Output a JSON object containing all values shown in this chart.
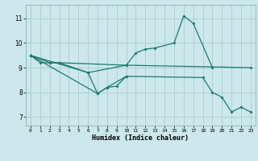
{
  "xlabel": "Humidex (Indice chaleur)",
  "background_color": "#cce8ec",
  "grid_color": "#aacccc",
  "line_color": "#1a7a6e",
  "xlim": [
    -0.5,
    23.5
  ],
  "ylim": [
    6.65,
    11.55
  ],
  "yticks": [
    7,
    8,
    9,
    10,
    11
  ],
  "xticks": [
    0,
    1,
    2,
    3,
    4,
    5,
    6,
    7,
    8,
    9,
    10,
    11,
    12,
    13,
    14,
    15,
    16,
    17,
    18,
    19,
    20,
    21,
    22,
    23
  ],
  "line1_x": [
    0,
    1,
    2,
    3,
    6,
    10,
    11,
    12,
    13,
    15,
    16,
    17,
    19
  ],
  "line1_y": [
    9.5,
    9.2,
    9.2,
    9.2,
    8.8,
    9.1,
    9.6,
    9.75,
    9.8,
    10.0,
    11.1,
    10.8,
    9.0
  ],
  "line2_x": [
    0,
    7,
    8,
    10
  ],
  "line2_y": [
    9.5,
    7.95,
    8.2,
    8.65
  ],
  "line3_x": [
    0,
    2,
    3,
    10,
    23
  ],
  "line3_y": [
    9.5,
    9.2,
    9.2,
    9.1,
    9.0
  ],
  "line4_x": [
    0,
    6,
    7,
    8,
    9,
    10,
    18,
    19,
    20,
    21,
    22,
    23
  ],
  "line4_y": [
    9.5,
    8.8,
    7.95,
    8.2,
    8.25,
    8.65,
    8.6,
    8.0,
    7.8,
    7.2,
    7.4,
    7.2
  ]
}
